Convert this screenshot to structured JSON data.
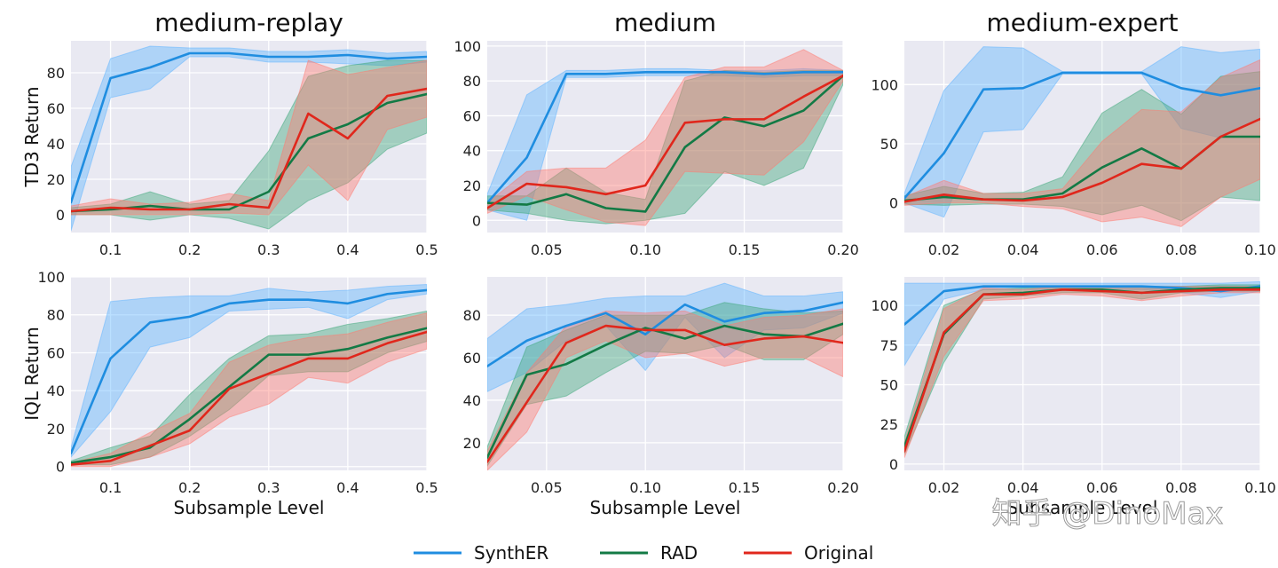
{
  "colors": {
    "SynthER": "#1f8de0",
    "RAD": "#137a45",
    "Original": "#e0271c",
    "SynthER_band": "#5db4ff",
    "RAD_band": "#3ea87a",
    "Original_band": "#ff7a70",
    "panel_bg": "#e9e9f2",
    "grid": "#ffffff"
  },
  "legend": {
    "items": [
      {
        "key": "SynthER",
        "label": "SynthER"
      },
      {
        "key": "RAD",
        "label": "RAD"
      },
      {
        "key": "Original",
        "label": "Original"
      }
    ]
  },
  "watermark": "知乎 @DinoMax",
  "chart_data": [
    {
      "type": "line",
      "title": "medium-replay",
      "ylabel": "TD3 Return",
      "xlabel": "",
      "xlim": [
        0.05,
        0.5
      ],
      "ylim": [
        -10,
        98
      ],
      "xticks": [
        0.1,
        0.2,
        0.3,
        0.4,
        0.5
      ],
      "xtick_labels": [
        "0.1",
        "0.2",
        "0.3",
        "0.4",
        "0.5"
      ],
      "yticks": [
        0,
        20,
        40,
        60,
        80
      ],
      "yticks_labels": [
        "0",
        "20",
        "40",
        "60",
        "80"
      ],
      "x": [
        0.05,
        0.1,
        0.15,
        0.2,
        0.25,
        0.3,
        0.35,
        0.4,
        0.45,
        0.5
      ],
      "series": [
        {
          "name": "SynthER",
          "values": [
            7,
            77,
            83,
            91,
            91,
            89,
            89,
            90,
            88,
            89
          ],
          "lower": [
            -9,
            66,
            71,
            89,
            89,
            86,
            86,
            85,
            84,
            86
          ],
          "upper": [
            27,
            88,
            95,
            94,
            94,
            92,
            92,
            93,
            91,
            92
          ]
        },
        {
          "name": "RAD",
          "values": [
            2,
            3,
            5,
            3,
            3,
            13,
            43,
            51,
            63,
            68
          ],
          "lower": [
            0,
            0,
            -3,
            0,
            -2,
            -8,
            8,
            18,
            37,
            46
          ],
          "upper": [
            4,
            6,
            13,
            6,
            8,
            36,
            78,
            84,
            87,
            87
          ]
        },
        {
          "name": "Original",
          "values": [
            2,
            4,
            3,
            3,
            6,
            4,
            57,
            43,
            67,
            71
          ],
          "lower": [
            0,
            0,
            0,
            0,
            1,
            0,
            28,
            8,
            48,
            55
          ],
          "upper": [
            5,
            9,
            6,
            7,
            12,
            8,
            87,
            79,
            83,
            87
          ]
        }
      ]
    },
    {
      "type": "line",
      "title": "medium",
      "ylabel": "",
      "xlabel": "",
      "xlim": [
        0.02,
        0.2
      ],
      "ylim": [
        -7,
        103
      ],
      "xticks": [
        0.05,
        0.1,
        0.15,
        0.2
      ],
      "xtick_labels": [
        "0.05",
        "0.10",
        "0.15",
        "0.20"
      ],
      "yticks": [
        0,
        20,
        40,
        60,
        80,
        100
      ],
      "yticks_labels": [
        "0",
        "20",
        "40",
        "60",
        "80",
        "100"
      ],
      "x": [
        0.02,
        0.04,
        0.06,
        0.08,
        0.1,
        0.12,
        0.14,
        0.16,
        0.18,
        0.2
      ],
      "series": [
        {
          "name": "SynthER",
          "values": [
            10,
            36,
            84,
            84,
            85,
            85,
            85,
            84,
            85,
            85
          ],
          "lower": [
            6,
            0,
            82,
            82,
            83,
            83,
            83,
            82,
            83,
            83
          ],
          "upper": [
            15,
            72,
            86,
            86,
            87,
            87,
            86,
            86,
            87,
            86
          ]
        },
        {
          "name": "RAD",
          "values": [
            10,
            9,
            15,
            7,
            5,
            42,
            59,
            54,
            63,
            83
          ],
          "lower": [
            6,
            4,
            0,
            -2,
            0,
            4,
            28,
            20,
            30,
            78
          ],
          "upper": [
            14,
            14,
            30,
            16,
            12,
            80,
            86,
            85,
            86,
            86
          ]
        },
        {
          "name": "Original",
          "values": [
            7,
            21,
            19,
            15,
            20,
            56,
            58,
            58,
            71,
            83
          ],
          "lower": [
            4,
            14,
            6,
            -1,
            -3,
            28,
            27,
            26,
            45,
            80
          ],
          "upper": [
            10,
            28,
            30,
            30,
            46,
            82,
            88,
            88,
            98,
            86
          ]
        }
      ]
    },
    {
      "type": "line",
      "title": "medium-expert",
      "ylabel": "",
      "xlabel": "",
      "xlim": [
        0.01,
        0.1
      ],
      "ylim": [
        -25,
        137
      ],
      "xticks": [
        0.02,
        0.04,
        0.06,
        0.08,
        0.1
      ],
      "xtick_labels": [
        "0.02",
        "0.04",
        "0.06",
        "0.08",
        "0.10"
      ],
      "yticks": [
        0,
        50,
        100
      ],
      "yticks_labels": [
        "0",
        "50",
        "100"
      ],
      "x": [
        0.01,
        0.02,
        0.03,
        0.04,
        0.05,
        0.06,
        0.07,
        0.08,
        0.09,
        0.1
      ],
      "series": [
        {
          "name": "SynthER",
          "values": [
            4,
            42,
            96,
            97,
            110,
            110,
            110,
            97,
            91,
            97
          ],
          "lower": [
            0,
            -12,
            60,
            62,
            109,
            109,
            109,
            63,
            55,
            72
          ],
          "upper": [
            8,
            95,
            132,
            131,
            111,
            111,
            111,
            132,
            127,
            130
          ]
        },
        {
          "name": "RAD",
          "values": [
            2,
            5,
            3,
            3,
            8,
            30,
            46,
            29,
            56,
            56
          ],
          "lower": [
            -1,
            -2,
            -1,
            -1,
            -3,
            -10,
            -2,
            -15,
            5,
            2
          ],
          "upper": [
            6,
            14,
            8,
            9,
            22,
            76,
            96,
            75,
            107,
            111
          ]
        },
        {
          "name": "Original",
          "values": [
            1,
            7,
            3,
            2,
            5,
            17,
            33,
            29,
            56,
            71
          ],
          "lower": [
            -2,
            0,
            0,
            -3,
            -5,
            -16,
            -12,
            -20,
            5,
            20
          ],
          "upper": [
            5,
            19,
            8,
            8,
            12,
            52,
            79,
            77,
            106,
            121
          ]
        }
      ]
    },
    {
      "type": "line",
      "title": "",
      "ylabel": "IQL Return",
      "xlabel": "Subsample Level",
      "xlim": [
        0.05,
        0.5
      ],
      "ylim": [
        -2,
        100
      ],
      "xticks": [
        0.1,
        0.2,
        0.3,
        0.4,
        0.5
      ],
      "xtick_labels": [
        "0.1",
        "0.2",
        "0.3",
        "0.4",
        "0.5"
      ],
      "yticks": [
        0,
        20,
        40,
        60,
        80,
        100
      ],
      "yticks_labels": [
        "0",
        "20",
        "40",
        "60",
        "80",
        "100"
      ],
      "x": [
        0.05,
        0.1,
        0.15,
        0.2,
        0.25,
        0.3,
        0.35,
        0.4,
        0.45,
        0.5
      ],
      "series": [
        {
          "name": "SynthER",
          "values": [
            7,
            57,
            76,
            79,
            86,
            88,
            88,
            86,
            91,
            93
          ],
          "lower": [
            5,
            29,
            63,
            68,
            82,
            83,
            84,
            78,
            88,
            91
          ],
          "upper": [
            10,
            87,
            89,
            90,
            90,
            94,
            92,
            93,
            95,
            96
          ]
        },
        {
          "name": "RAD",
          "values": [
            2,
            5,
            10,
            25,
            42,
            59,
            59,
            62,
            68,
            73
          ],
          "lower": [
            1,
            1,
            5,
            16,
            30,
            48,
            50,
            50,
            60,
            66
          ],
          "upper": [
            3,
            10,
            16,
            38,
            57,
            69,
            70,
            75,
            78,
            82
          ]
        },
        {
          "name": "Original",
          "values": [
            1,
            3,
            11,
            19,
            41,
            49,
            57,
            57,
            65,
            71
          ],
          "lower": [
            0,
            0,
            5,
            12,
            26,
            33,
            47,
            44,
            55,
            62
          ],
          "upper": [
            2,
            7,
            18,
            28,
            55,
            64,
            68,
            70,
            76,
            81
          ]
        }
      ]
    },
    {
      "type": "line",
      "title": "",
      "ylabel": "",
      "xlabel": "Subsample Level",
      "xlim": [
        0.02,
        0.2
      ],
      "ylim": [
        7,
        98
      ],
      "xticks": [
        0.05,
        0.1,
        0.15,
        0.2
      ],
      "xtick_labels": [
        "0.05",
        "0.10",
        "0.15",
        "0.20"
      ],
      "yticks": [
        20,
        40,
        60,
        80
      ],
      "yticks_labels": [
        "20",
        "40",
        "60",
        "80"
      ],
      "x": [
        0.02,
        0.04,
        0.06,
        0.08,
        0.1,
        0.12,
        0.14,
        0.16,
        0.18,
        0.2
      ],
      "series": [
        {
          "name": "SynthER",
          "values": [
            56,
            68,
            75,
            81,
            71,
            85,
            77,
            81,
            82,
            86
          ],
          "lower": [
            44,
            53,
            68,
            75,
            54,
            79,
            60,
            73,
            74,
            81
          ],
          "upper": [
            69,
            83,
            85,
            88,
            89,
            89,
            95,
            89,
            89,
            91
          ]
        },
        {
          "name": "RAD",
          "values": [
            13,
            52,
            57,
            66,
            74,
            69,
            75,
            71,
            70,
            76
          ],
          "lower": [
            9,
            38,
            42,
            53,
            63,
            62,
            66,
            59,
            59,
            71
          ],
          "upper": [
            18,
            65,
            73,
            80,
            80,
            80,
            86,
            83,
            81,
            82
          ]
        },
        {
          "name": "Original",
          "values": [
            11,
            39,
            67,
            75,
            73,
            73,
            66,
            69,
            70,
            67
          ],
          "lower": [
            7,
            25,
            60,
            68,
            60,
            62,
            56,
            60,
            60,
            51
          ],
          "upper": [
            16,
            53,
            75,
            82,
            81,
            82,
            75,
            79,
            80,
            83
          ]
        }
      ]
    },
    {
      "type": "line",
      "title": "",
      "ylabel": "",
      "xlabel": "Subsample Level",
      "xlim": [
        0.01,
        0.1
      ],
      "ylim": [
        -4,
        118
      ],
      "xticks": [
        0.02,
        0.04,
        0.06,
        0.08,
        0.1
      ],
      "xtick_labels": [
        "0.02",
        "0.04",
        "0.06",
        "0.08",
        "0.10"
      ],
      "yticks": [
        0,
        25,
        50,
        75,
        100
      ],
      "yticks_labels": [
        "0",
        "25",
        "50",
        "75",
        "100"
      ],
      "x": [
        0.01,
        0.02,
        0.03,
        0.04,
        0.05,
        0.06,
        0.07,
        0.08,
        0.09,
        0.1
      ],
      "series": [
        {
          "name": "SynthER",
          "values": [
            88,
            109,
            112,
            112,
            112,
            112,
            112,
            111,
            109,
            112
          ],
          "lower": [
            62,
            104,
            110,
            110,
            110,
            110,
            110,
            108,
            105,
            109
          ],
          "upper": [
            114,
            114,
            114,
            114,
            114,
            114,
            114,
            114,
            114,
            115
          ]
        },
        {
          "name": "RAD",
          "values": [
            11,
            82,
            107,
            108,
            110,
            110,
            108,
            110,
            111,
            111
          ],
          "lower": [
            6,
            64,
            104,
            106,
            108,
            108,
            104,
            108,
            109,
            109
          ],
          "upper": [
            17,
            100,
            110,
            111,
            112,
            112,
            112,
            112,
            113,
            113
          ]
        },
        {
          "name": "Original",
          "values": [
            8,
            83,
            107,
            107,
            110,
            109,
            108,
            109,
            110,
            110
          ],
          "lower": [
            4,
            68,
            103,
            104,
            107,
            106,
            103,
            106,
            108,
            108
          ],
          "upper": [
            13,
            98,
            111,
            110,
            112,
            112,
            112,
            112,
            112,
            112
          ]
        }
      ]
    }
  ]
}
